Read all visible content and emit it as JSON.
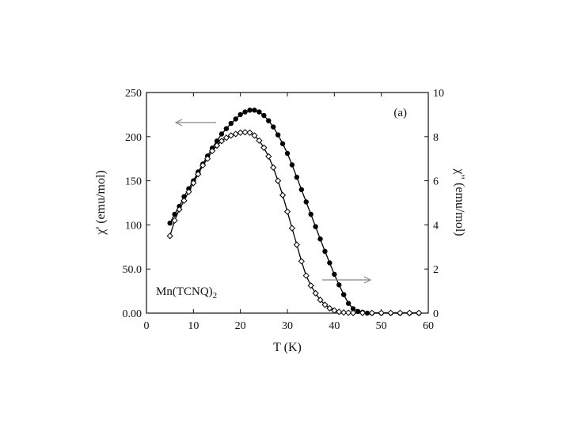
{
  "chart_data": {
    "type": "scatter",
    "panel_label": "(a)",
    "annotation": {
      "main": "Mn(TCNQ)",
      "subscript": "2"
    },
    "xlabel": "T (K)",
    "ylabel_left": "χ' (emu/mol)",
    "ylabel_right": "χ\" (emu/mol)",
    "xlim": [
      0,
      60
    ],
    "ylim_left": [
      0,
      250
    ],
    "ylim_right": [
      0,
      10
    ],
    "x_ticks": [
      0,
      10,
      20,
      30,
      40,
      50,
      60
    ],
    "x_tick_labels": [
      "0",
      "10",
      "20",
      "30",
      "40",
      "50",
      "60"
    ],
    "y_left_ticks": [
      0,
      50,
      100,
      150,
      200,
      250
    ],
    "y_left_tick_labels": [
      "0.00",
      "50.0",
      "100",
      "150",
      "200",
      "250"
    ],
    "y_right_ticks": [
      0,
      2,
      4,
      6,
      8,
      10
    ],
    "y_right_tick_labels": [
      "0",
      "2",
      "4",
      "6",
      "8",
      "10"
    ],
    "grid": false,
    "series": [
      {
        "axis": "left",
        "marker": "filled-circle",
        "color": "#000000",
        "x": [
          5,
          6,
          7,
          8,
          9,
          10,
          11,
          12,
          13,
          14,
          15,
          16,
          17,
          18,
          19,
          20,
          21,
          22,
          23,
          24,
          25,
          26,
          27,
          28,
          29,
          30,
          31,
          32,
          33,
          34,
          35,
          36,
          37,
          38,
          39,
          40,
          41,
          42,
          43,
          44,
          45,
          46,
          47,
          48,
          50,
          52,
          54,
          56,
          58
        ],
        "y": [
          102,
          112,
          121,
          132,
          141,
          150,
          160,
          169,
          178,
          187,
          195,
          203,
          209,
          215,
          220,
          225,
          228,
          230,
          230,
          228,
          224,
          218,
          211,
          202,
          192,
          181,
          168,
          154,
          140,
          126,
          112,
          98,
          84,
          70,
          57,
          44,
          32,
          21,
          11,
          5,
          2,
          1,
          0,
          0,
          0,
          0,
          0,
          0,
          0
        ]
      },
      {
        "axis": "right",
        "marker": "open-diamond",
        "color": "#000000",
        "x": [
          5,
          6,
          7,
          8,
          9,
          10,
          11,
          12,
          13,
          14,
          15,
          16,
          17,
          18,
          19,
          20,
          21,
          22,
          23,
          24,
          25,
          26,
          27,
          28,
          29,
          30,
          31,
          32,
          33,
          34,
          35,
          36,
          37,
          38,
          39,
          40,
          41,
          42,
          43,
          44,
          46,
          48,
          50,
          52,
          54,
          56,
          58
        ],
        "y": [
          3.5,
          4.2,
          4.7,
          5.1,
          5.5,
          5.9,
          6.3,
          6.7,
          7.0,
          7.35,
          7.6,
          7.8,
          7.95,
          8.05,
          8.12,
          8.18,
          8.2,
          8.18,
          8.05,
          7.82,
          7.5,
          7.1,
          6.6,
          6.0,
          5.35,
          4.6,
          3.85,
          3.1,
          2.35,
          1.7,
          1.25,
          0.9,
          0.6,
          0.38,
          0.22,
          0.12,
          0.06,
          0.03,
          0.02,
          0.01,
          0.01,
          0.01,
          0.01,
          0.01,
          0.01,
          0.01,
          0.01
        ]
      }
    ]
  }
}
